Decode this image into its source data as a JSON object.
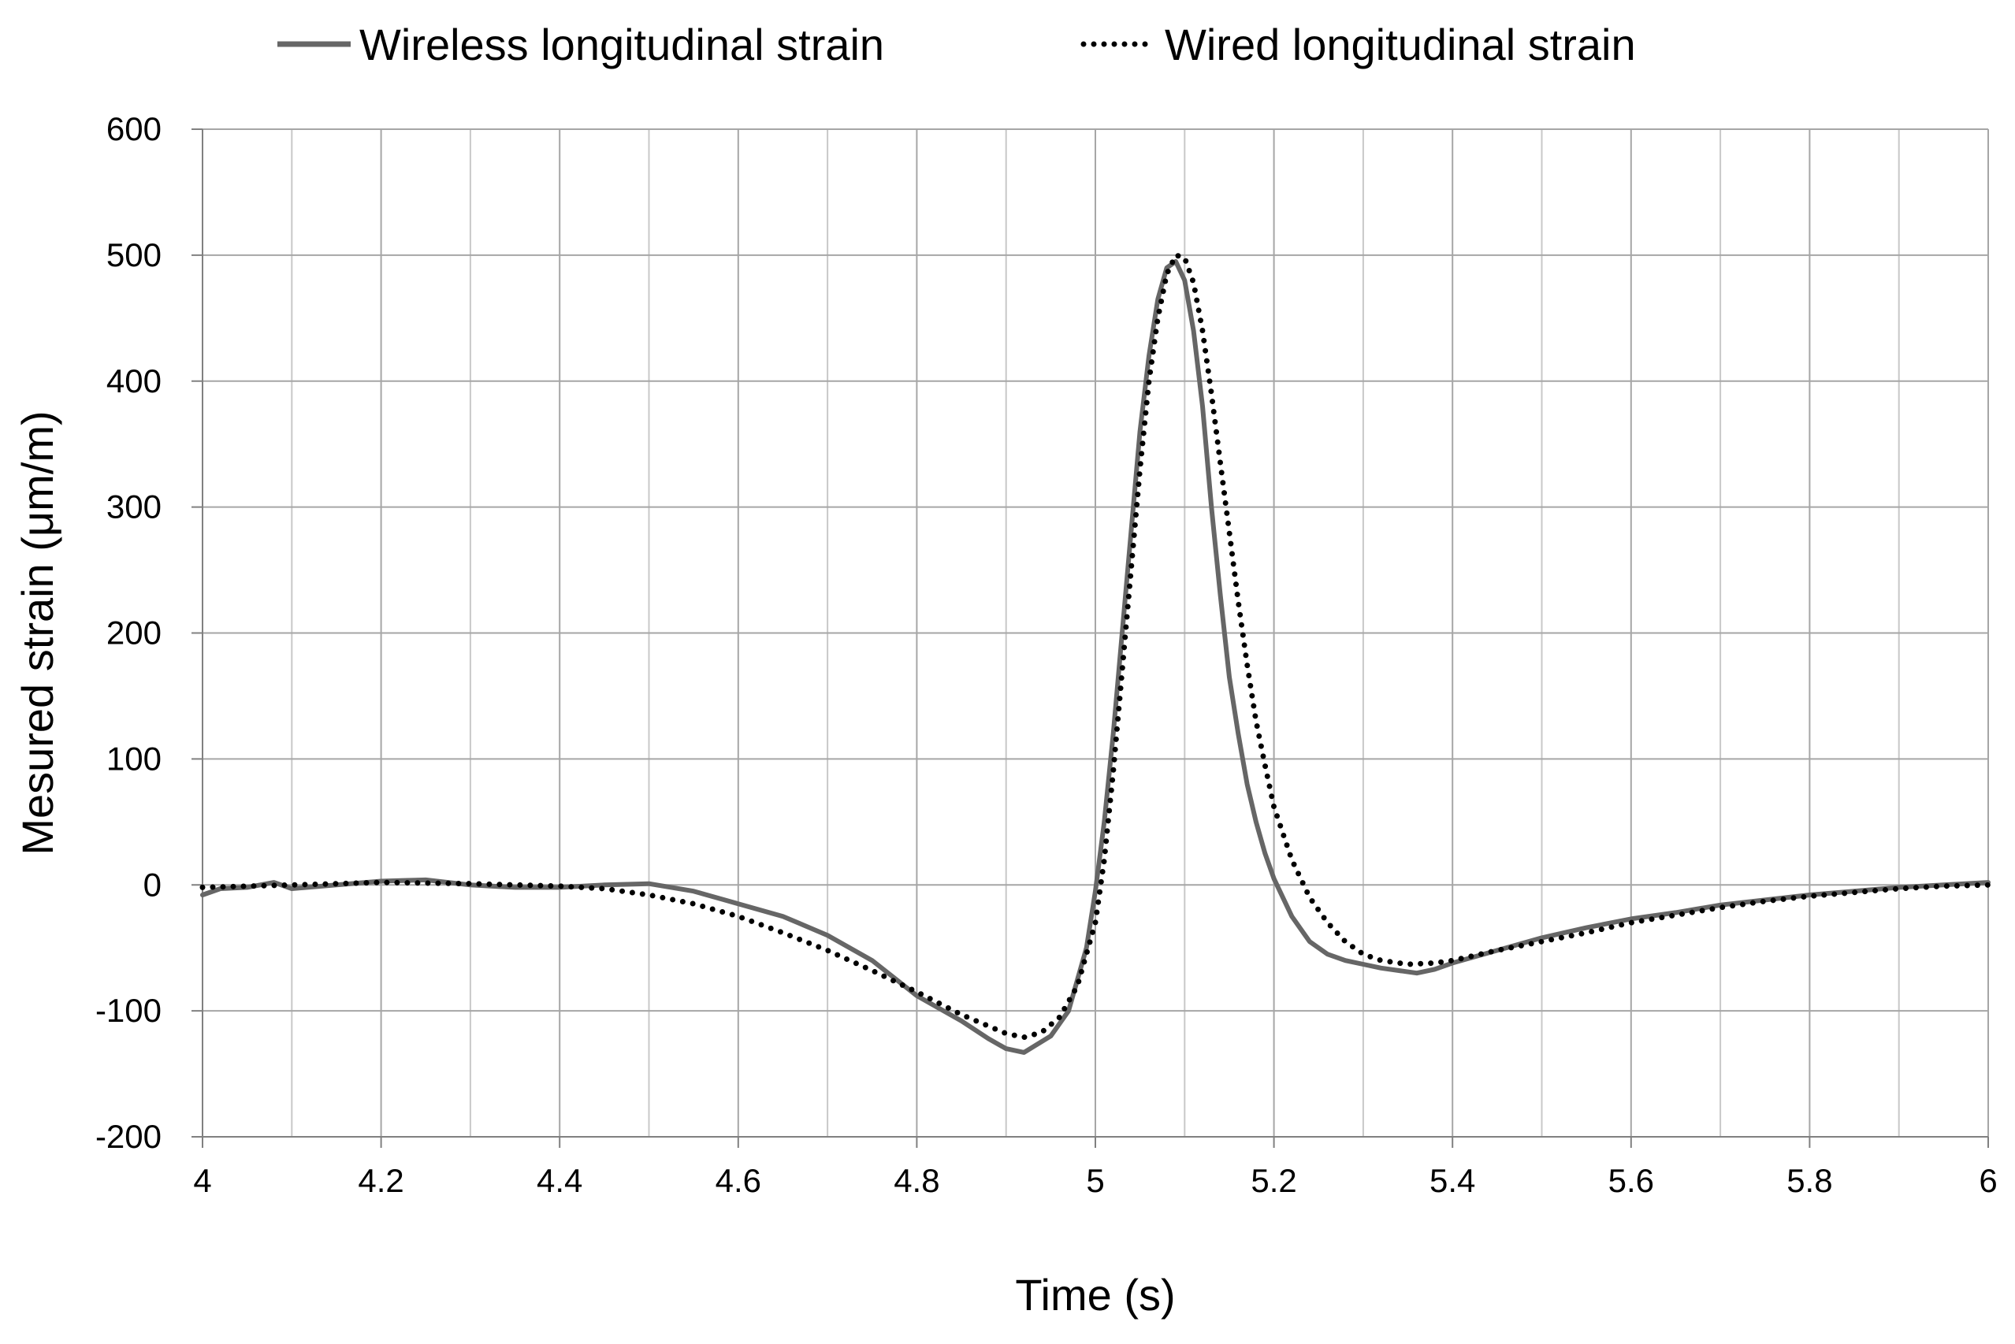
{
  "chart_data": {
    "type": "line",
    "xlabel": "Time (s)",
    "ylabel": "Mesured strain (μm/m)",
    "xlim": [
      4,
      6
    ],
    "ylim": [
      -200,
      600
    ],
    "x_ticks": [
      4,
      4.2,
      4.4,
      4.6,
      4.8,
      5,
      5.2,
      5.4,
      5.6,
      5.8,
      6
    ],
    "x_minor_step": 0.1,
    "y_ticks": [
      -200,
      -100,
      0,
      100,
      200,
      300,
      400,
      500,
      600
    ],
    "grid": true,
    "legend_position": "top",
    "series": [
      {
        "name": "Wireless longitudinal strain",
        "style": "solid",
        "color": "#666666",
        "x": [
          4.0,
          4.02,
          4.05,
          4.08,
          4.1,
          4.15,
          4.2,
          4.25,
          4.3,
          4.35,
          4.4,
          4.45,
          4.5,
          4.55,
          4.6,
          4.65,
          4.7,
          4.75,
          4.8,
          4.85,
          4.88,
          4.9,
          4.92,
          4.95,
          4.97,
          4.99,
          5.0,
          5.01,
          5.02,
          5.03,
          5.04,
          5.05,
          5.06,
          5.07,
          5.08,
          5.09,
          5.1,
          5.11,
          5.12,
          5.13,
          5.14,
          5.15,
          5.16,
          5.17,
          5.18,
          5.19,
          5.2,
          5.22,
          5.24,
          5.26,
          5.28,
          5.3,
          5.32,
          5.34,
          5.36,
          5.38,
          5.4,
          5.45,
          5.5,
          5.55,
          5.6,
          5.65,
          5.7,
          5.75,
          5.8,
          5.85,
          5.9,
          5.95,
          6.0
        ],
        "y": [
          -8,
          -3,
          -2,
          2,
          -3,
          0,
          3,
          4,
          0,
          -2,
          -2,
          0,
          1,
          -5,
          -15,
          -25,
          -40,
          -60,
          -88,
          -108,
          -122,
          -130,
          -133,
          -120,
          -100,
          -50,
          -5,
          50,
          120,
          200,
          280,
          360,
          420,
          465,
          490,
          495,
          480,
          440,
          380,
          300,
          230,
          165,
          120,
          80,
          50,
          25,
          5,
          -25,
          -45,
          -55,
          -60,
          -63,
          -66,
          -68,
          -70,
          -67,
          -62,
          -52,
          -42,
          -34,
          -27,
          -22,
          -16,
          -12,
          -8,
          -5,
          -2,
          0,
          2
        ]
      },
      {
        "name": "Wired longitudinal strain",
        "style": "dotted",
        "color": "#000000",
        "x": [
          4.0,
          4.1,
          4.2,
          4.3,
          4.4,
          4.45,
          4.5,
          4.55,
          4.6,
          4.65,
          4.7,
          4.75,
          4.8,
          4.85,
          4.88,
          4.9,
          4.92,
          4.94,
          4.96,
          4.98,
          5.0,
          5.01,
          5.02,
          5.03,
          5.04,
          5.05,
          5.06,
          5.07,
          5.08,
          5.09,
          5.1,
          5.11,
          5.12,
          5.13,
          5.14,
          5.15,
          5.16,
          5.17,
          5.18,
          5.19,
          5.2,
          5.22,
          5.24,
          5.26,
          5.28,
          5.3,
          5.32,
          5.35,
          5.38,
          5.4,
          5.45,
          5.5,
          5.55,
          5.6,
          5.65,
          5.7,
          5.75,
          5.8,
          5.85,
          5.9,
          5.95,
          6.0
        ],
        "y": [
          -2,
          0,
          2,
          1,
          -1,
          -3,
          -8,
          -15,
          -25,
          -38,
          -52,
          -68,
          -85,
          -103,
          -112,
          -118,
          -121,
          -117,
          -105,
          -80,
          -30,
          20,
          90,
          170,
          250,
          330,
          400,
          450,
          485,
          500,
          498,
          478,
          440,
          390,
          335,
          280,
          225,
          175,
          130,
          95,
          62,
          20,
          -10,
          -30,
          -45,
          -55,
          -60,
          -63,
          -62,
          -60,
          -52,
          -45,
          -38,
          -30,
          -24,
          -18,
          -13,
          -9,
          -6,
          -3,
          -1,
          0
        ]
      }
    ]
  }
}
